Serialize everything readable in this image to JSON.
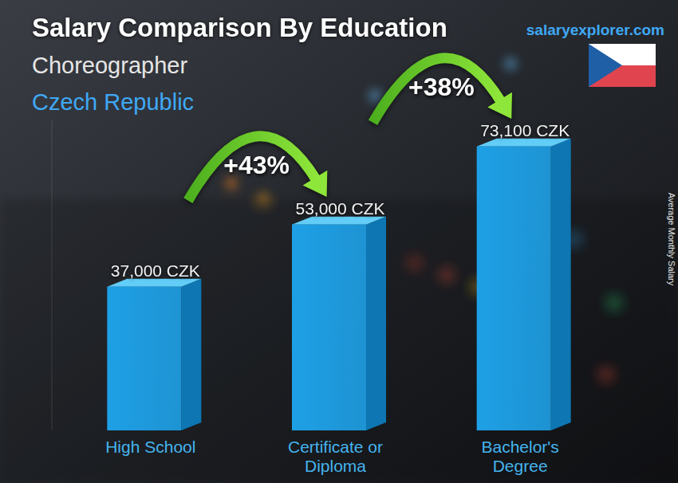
{
  "chart_data": {
    "type": "bar",
    "title": "Salary Comparison By Education",
    "subtitle": "Choreographer",
    "location": "Czech Republic",
    "source": "salaryexplorer.com",
    "y_label": "Average Monthly Salary",
    "categories": [
      "High School",
      "Certificate or Diploma",
      "Bachelor's Degree"
    ],
    "values": [
      37000,
      53000,
      73100
    ],
    "value_labels": [
      "37,000 CZK",
      "53,000 CZK",
      "73,100 CZK"
    ],
    "annotations": [
      "+43%",
      "+38%"
    ],
    "color": "#1ea0e6",
    "ylim": [
      0,
      80000
    ],
    "data_labels": true,
    "tick_labels": "x",
    "grid": false
  }
}
